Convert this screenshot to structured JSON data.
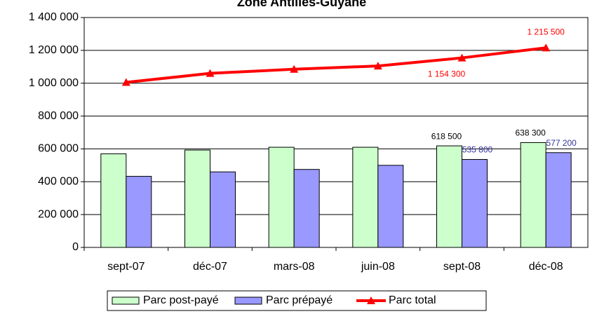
{
  "chart_data": {
    "type": "bar",
    "title": "Zone Antilles-Guyane",
    "categories": [
      "sept-07",
      "déc-07",
      "mars-08",
      "juin-08",
      "sept-08",
      "déc-08"
    ],
    "series": [
      {
        "name": "Parc post-payé",
        "type": "bar",
        "color": "#ccffcc",
        "values": [
          570000,
          593000,
          610000,
          610000,
          618500,
          638300
        ],
        "value_labels": [
          null,
          null,
          null,
          null,
          "618 500",
          "638 300"
        ]
      },
      {
        "name": "Parc prépayé",
        "type": "bar",
        "color": "#9999ff",
        "values": [
          433000,
          460000,
          475000,
          500000,
          535800,
          577200
        ],
        "value_labels": [
          null,
          null,
          null,
          null,
          "535 800",
          "577 200"
        ]
      },
      {
        "name": "Parc total",
        "type": "line",
        "color": "#ff0000",
        "values": [
          1005000,
          1060000,
          1085000,
          1105000,
          1154300,
          1215500
        ],
        "value_labels": [
          null,
          null,
          null,
          null,
          "1 154 300",
          "1 215 500"
        ]
      }
    ],
    "ylim": [
      0,
      1400000
    ],
    "yticks": [
      0,
      {
        "value": 200000,
        "label": "200 000"
      },
      {
        "value": 400000,
        "label": "400 000"
      },
      {
        "value": 600000,
        "label": "600 000"
      },
      {
        "value": 800000,
        "label": "800 000"
      },
      {
        "value": 1000000,
        "label": "1 000 000"
      },
      {
        "value": 1200000,
        "label": "1 200 000"
      },
      {
        "value": 1400000,
        "label": "1 400 000"
      }
    ],
    "grid": true,
    "legend": "bottom"
  }
}
